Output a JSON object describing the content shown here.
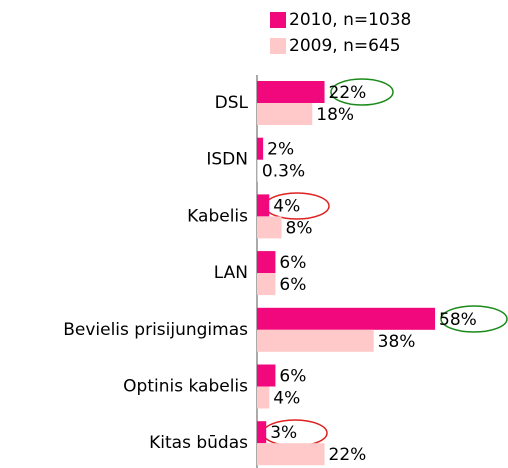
{
  "chart_data": {
    "type": "hbar",
    "categories": [
      "DSL",
      "ISDN",
      "Kabelis",
      "LAN",
      "Bevielis prisijungimas",
      "Optinis kabelis",
      "Kitas būdas"
    ],
    "series": [
      {
        "name": "2010, n=1038",
        "color": "#f0087c",
        "values": [
          22,
          2,
          4,
          6,
          58,
          6,
          3
        ],
        "value_labels": [
          "22%",
          "2%",
          "4%",
          "6%",
          "58%",
          "6%",
          "3%"
        ]
      },
      {
        "name": "2009, n=645",
        "color": "#ffc9c9",
        "values": [
          18,
          0.3,
          8,
          6,
          38,
          4,
          22
        ],
        "value_labels": [
          "18%",
          "0.3%",
          "8%",
          "6%",
          "38%",
          "4%",
          "22%"
        ]
      }
    ],
    "legend": "top-right"
  }
}
